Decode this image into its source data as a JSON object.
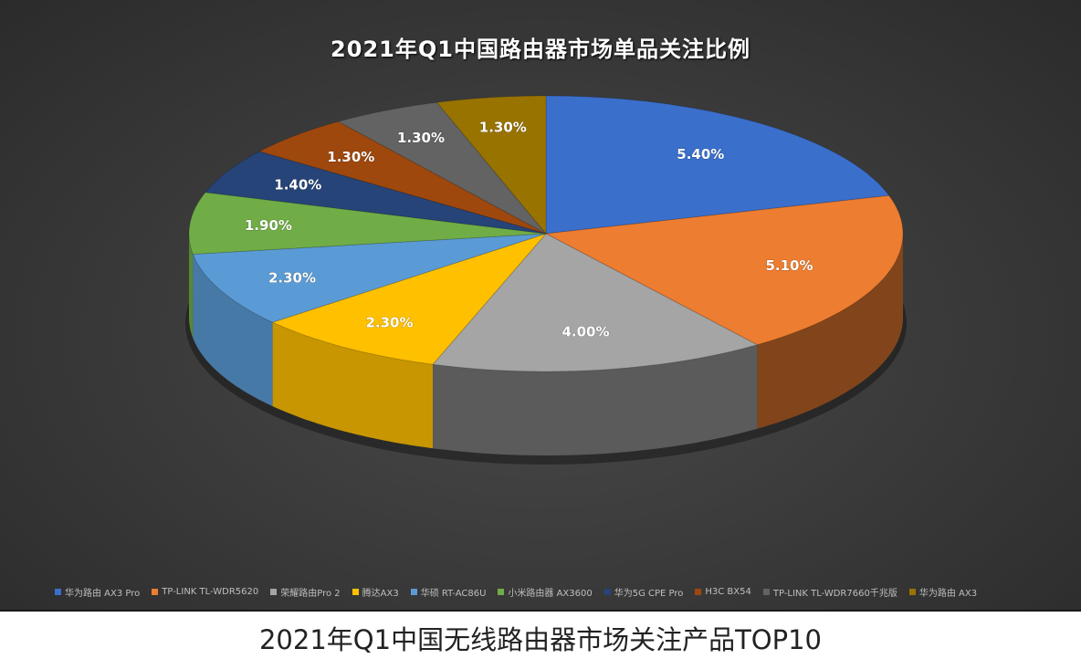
{
  "chart_data": {
    "type": "pie",
    "style": "3d",
    "title": "2021年Q1中国路由器市场单品关注比例",
    "categories": [
      "华为路由 AX3 Pro",
      "TP-LINK TL-WDR5620",
      "荣耀路由Pro 2",
      "腾达AX3",
      "华硕 RT-AC86U",
      "小米路由器 AX3600",
      "华为5G CPE Pro",
      "H3C BX54",
      "TP-LINK TL-WDR7660千兆版",
      "华为路由 AX3"
    ],
    "values": [
      5.4,
      5.1,
      4.0,
      2.3,
      2.3,
      1.9,
      1.4,
      1.3,
      1.3,
      1.3
    ],
    "labels": [
      "5.40%",
      "5.10%",
      "4.00%",
      "2.30%",
      "2.30%",
      "1.90%",
      "1.40%",
      "1.30%",
      "1.30%",
      "1.30%"
    ],
    "colors": [
      "#3a6fcc",
      "#ed7d31",
      "#a5a5a5",
      "#ffc000",
      "#5b9bd5",
      "#70ad47",
      "#264478",
      "#9e480e",
      "#636363",
      "#997300"
    ],
    "legend_position": "bottom",
    "unit": "%"
  },
  "caption": "2021年Q1中国无线路由器市场关注产品TOP10"
}
